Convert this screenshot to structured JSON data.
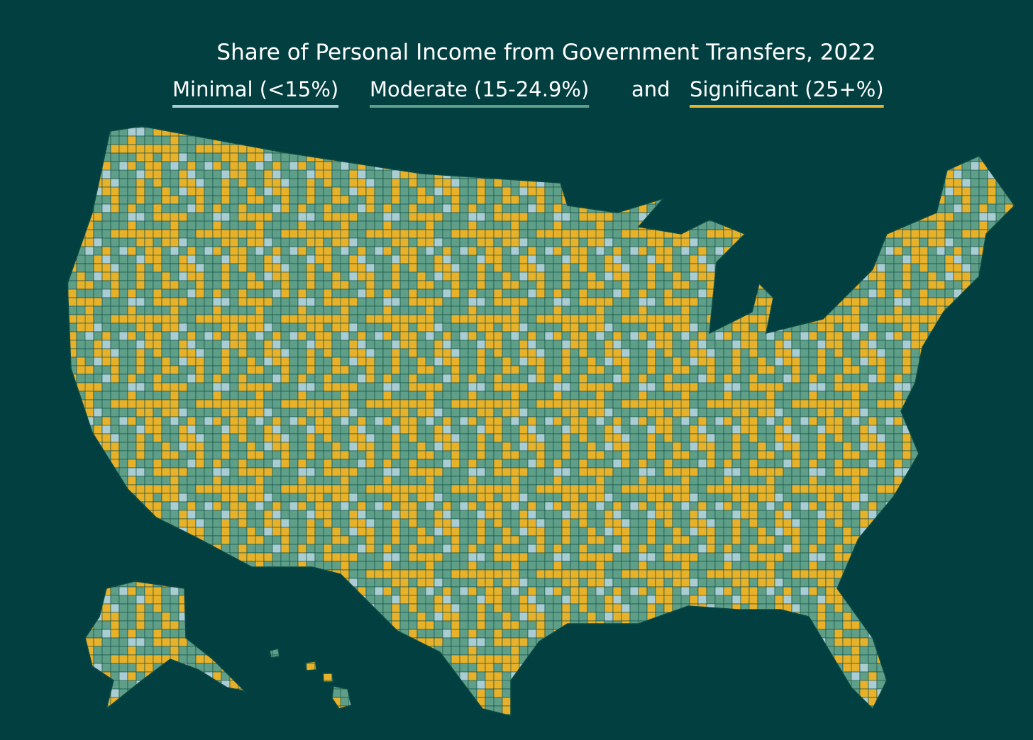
{
  "title": "Share of Personal Income from Government Transfers, 2022",
  "legend": [
    {
      "label": "Minimal (<15%)",
      "color": "#a9cdd3"
    },
    {
      "label": "Moderate (15-24.9%)",
      "color": "#5f9f88"
    },
    {
      "label": "Significant (25+%)",
      "color": "#e8b12a"
    }
  ],
  "connector": "and"
}
